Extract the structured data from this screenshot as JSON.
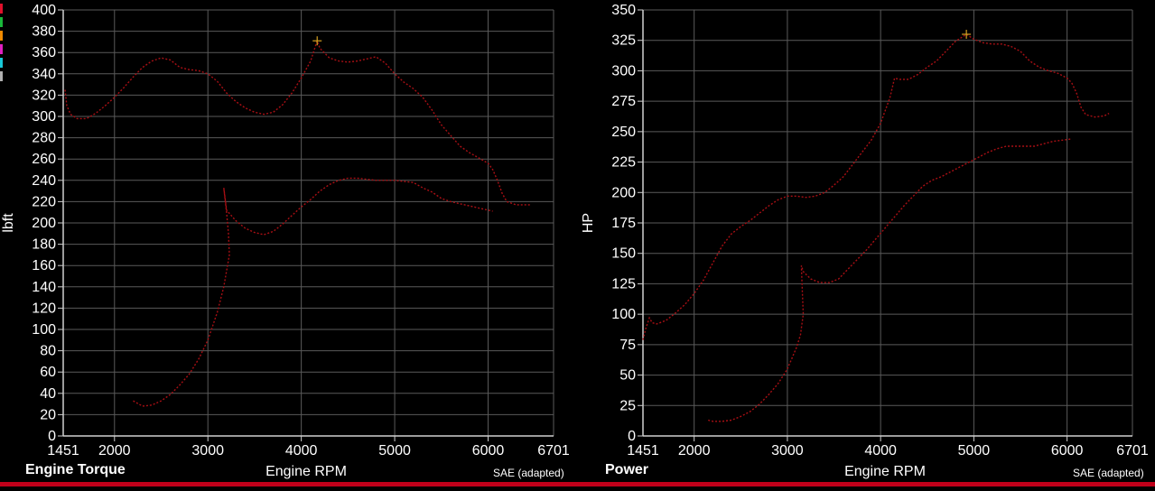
{
  "legend_colors": [
    "#e0102b",
    "#19b83a",
    "#f08a00",
    "#e020c0",
    "#18c8d8",
    "#b0b0b0"
  ],
  "chart_data": [
    {
      "type": "line",
      "title": "Engine Torque",
      "xlabel": "Engine RPM",
      "ylabel": "lbft",
      "footnote": "SAE (adapted)",
      "xlim": [
        1451,
        6701
      ],
      "ylim": [
        0,
        400
      ],
      "x_ticks": [
        2000,
        3000,
        4000,
        5000,
        6000
      ],
      "x_edge_labels": [
        "1451",
        "6701"
      ],
      "y_ticks": [
        0,
        20,
        40,
        60,
        80,
        100,
        120,
        140,
        160,
        180,
        200,
        220,
        240,
        260,
        280,
        300,
        320,
        340,
        360,
        380,
        400
      ],
      "grid": true,
      "line_color": "#a80f14",
      "marker_color": "#d4a020",
      "peak_marker": {
        "x": 4170,
        "y": 371
      },
      "series": [
        {
          "points": [
            [
              1470,
              325
            ],
            [
              1490,
              310
            ],
            [
              1530,
              302
            ],
            [
              1600,
              298
            ],
            [
              1700,
              298
            ],
            [
              1800,
              303
            ],
            [
              1900,
              310
            ],
            [
              2000,
              318
            ],
            [
              2100,
              327
            ],
            [
              2200,
              337
            ],
            [
              2300,
              346
            ],
            [
              2400,
              352
            ],
            [
              2500,
              355
            ],
            [
              2600,
              353
            ],
            [
              2700,
              346
            ],
            [
              2800,
              344
            ],
            [
              2900,
              343
            ],
            [
              3000,
              340
            ],
            [
              3100,
              333
            ],
            [
              3200,
              322
            ],
            [
              3300,
              314
            ],
            [
              3400,
              308
            ],
            [
              3500,
              304
            ],
            [
              3600,
              302
            ],
            [
              3700,
              304
            ],
            [
              3800,
              311
            ],
            [
              3900,
              322
            ],
            [
              4000,
              336
            ],
            [
              4100,
              352
            ],
            [
              4170,
              371
            ],
            [
              4200,
              364
            ],
            [
              4300,
              355
            ],
            [
              4400,
              352
            ],
            [
              4500,
              351
            ],
            [
              4600,
              352
            ],
            [
              4700,
              354
            ],
            [
              4800,
              356
            ],
            [
              4900,
              350
            ],
            [
              5000,
              340
            ],
            [
              5100,
              332
            ],
            [
              5200,
              326
            ],
            [
              5300,
              318
            ],
            [
              5400,
              306
            ],
            [
              5500,
              292
            ],
            [
              5600,
              282
            ],
            [
              5700,
              272
            ],
            [
              5800,
              266
            ],
            [
              5900,
              261
            ],
            [
              6000,
              256
            ],
            [
              6050,
              250
            ],
            [
              6100,
              240
            ],
            [
              6150,
              228
            ],
            [
              6200,
              220
            ],
            [
              6300,
              217
            ],
            [
              6400,
              217
            ],
            [
              6450,
              217
            ]
          ]
        },
        {
          "points": [
            [
              2200,
              33
            ],
            [
              2300,
              28
            ],
            [
              2400,
              29
            ],
            [
              2500,
              33
            ],
            [
              2600,
              39
            ],
            [
              2700,
              48
            ],
            [
              2800,
              58
            ],
            [
              2900,
              72
            ],
            [
              3000,
              90
            ],
            [
              3100,
              116
            ],
            [
              3170,
              140
            ],
            [
              3200,
              155
            ],
            [
              3230,
              170
            ],
            [
              3220,
              190
            ],
            [
              3200,
              210
            ],
            [
              3170,
              233
            ],
            [
              3200,
              212
            ],
            [
              3300,
              202
            ],
            [
              3400,
              195
            ],
            [
              3500,
              191
            ],
            [
              3600,
              189
            ],
            [
              3700,
              192
            ],
            [
              3800,
              199
            ],
            [
              3900,
              207
            ],
            [
              4000,
              215
            ],
            [
              4100,
              222
            ],
            [
              4200,
              230
            ],
            [
              4300,
              236
            ],
            [
              4400,
              240
            ],
            [
              4500,
              242
            ],
            [
              4600,
              242
            ],
            [
              4700,
              241
            ],
            [
              4800,
              240
            ],
            [
              4900,
              240
            ],
            [
              5000,
              240
            ],
            [
              5100,
              239
            ],
            [
              5200,
              238
            ],
            [
              5300,
              233
            ],
            [
              5400,
              229
            ],
            [
              5500,
              223
            ],
            [
              5600,
              220
            ],
            [
              5700,
              218
            ],
            [
              5800,
              216
            ],
            [
              5900,
              214
            ],
            [
              6000,
              212
            ],
            [
              6050,
              211
            ]
          ]
        }
      ]
    },
    {
      "type": "line",
      "title": "Power",
      "xlabel": "Engine RPM",
      "ylabel": "HP",
      "footnote": "SAE (adapted)",
      "xlim": [
        1451,
        6701
      ],
      "ylim": [
        0,
        350
      ],
      "x_ticks": [
        2000,
        3000,
        4000,
        5000,
        6000
      ],
      "x_edge_labels": [
        "1451",
        "6701"
      ],
      "y_ticks": [
        0,
        25,
        50,
        75,
        100,
        125,
        150,
        175,
        200,
        225,
        250,
        275,
        300,
        325,
        350
      ],
      "grid": true,
      "line_color": "#a80f14",
      "marker_color": "#d4a020",
      "peak_marker": {
        "x": 4920,
        "y": 330
      },
      "series": [
        {
          "points": [
            [
              1451,
              79
            ],
            [
              1480,
              88
            ],
            [
              1520,
              97
            ],
            [
              1550,
              93
            ],
            [
              1600,
              92
            ],
            [
              1700,
              95
            ],
            [
              1800,
              101
            ],
            [
              1900,
              108
            ],
            [
              2000,
              117
            ],
            [
              2100,
              128
            ],
            [
              2200,
              142
            ],
            [
              2300,
              156
            ],
            [
              2400,
              166
            ],
            [
              2500,
              172
            ],
            [
              2600,
              177
            ],
            [
              2700,
              183
            ],
            [
              2800,
              189
            ],
            [
              2900,
              194
            ],
            [
              3000,
              197
            ],
            [
              3100,
              197
            ],
            [
              3200,
              196
            ],
            [
              3300,
              197
            ],
            [
              3400,
              200
            ],
            [
              3500,
              206
            ],
            [
              3600,
              213
            ],
            [
              3700,
              223
            ],
            [
              3800,
              233
            ],
            [
              3900,
              243
            ],
            [
              4000,
              257
            ],
            [
              4100,
              278
            ],
            [
              4150,
              294
            ],
            [
              4200,
              293
            ],
            [
              4300,
              293
            ],
            [
              4400,
              297
            ],
            [
              4500,
              303
            ],
            [
              4600,
              308
            ],
            [
              4700,
              316
            ],
            [
              4800,
              324
            ],
            [
              4920,
              330
            ],
            [
              5000,
              326
            ],
            [
              5100,
              323
            ],
            [
              5200,
              322
            ],
            [
              5300,
              322
            ],
            [
              5400,
              320
            ],
            [
              5500,
              316
            ],
            [
              5600,
              308
            ],
            [
              5700,
              303
            ],
            [
              5800,
              300
            ],
            [
              5900,
              298
            ],
            [
              6000,
              294
            ],
            [
              6050,
              290
            ],
            [
              6100,
              282
            ],
            [
              6150,
              270
            ],
            [
              6200,
              264
            ],
            [
              6300,
              262
            ],
            [
              6400,
              263
            ],
            [
              6450,
              265
            ]
          ]
        },
        {
          "points": [
            [
              2150,
              13
            ],
            [
              2200,
              12
            ],
            [
              2300,
              12
            ],
            [
              2400,
              13
            ],
            [
              2500,
              16
            ],
            [
              2600,
              20
            ],
            [
              2700,
              26
            ],
            [
              2800,
              34
            ],
            [
              2900,
              43
            ],
            [
              3000,
              55
            ],
            [
              3100,
              73
            ],
            [
              3140,
              83
            ],
            [
              3170,
              100
            ],
            [
              3160,
              120
            ],
            [
              3150,
              140
            ],
            [
              3170,
              135
            ],
            [
              3250,
              129
            ],
            [
              3350,
              126
            ],
            [
              3450,
              126
            ],
            [
              3550,
              129
            ],
            [
              3650,
              137
            ],
            [
              3750,
              145
            ],
            [
              3850,
              153
            ],
            [
              3950,
              162
            ],
            [
              4050,
              171
            ],
            [
              4150,
              180
            ],
            [
              4250,
              189
            ],
            [
              4350,
              197
            ],
            [
              4450,
              205
            ],
            [
              4550,
              210
            ],
            [
              4650,
              213
            ],
            [
              4750,
              217
            ],
            [
              4850,
              221
            ],
            [
              4950,
              225
            ],
            [
              5050,
              229
            ],
            [
              5150,
              233
            ],
            [
              5250,
              236
            ],
            [
              5350,
              238
            ],
            [
              5450,
              238
            ],
            [
              5550,
              238
            ],
            [
              5650,
              238
            ],
            [
              5750,
              240
            ],
            [
              5850,
              242
            ],
            [
              5950,
              243
            ],
            [
              6050,
              244
            ]
          ]
        }
      ]
    }
  ]
}
